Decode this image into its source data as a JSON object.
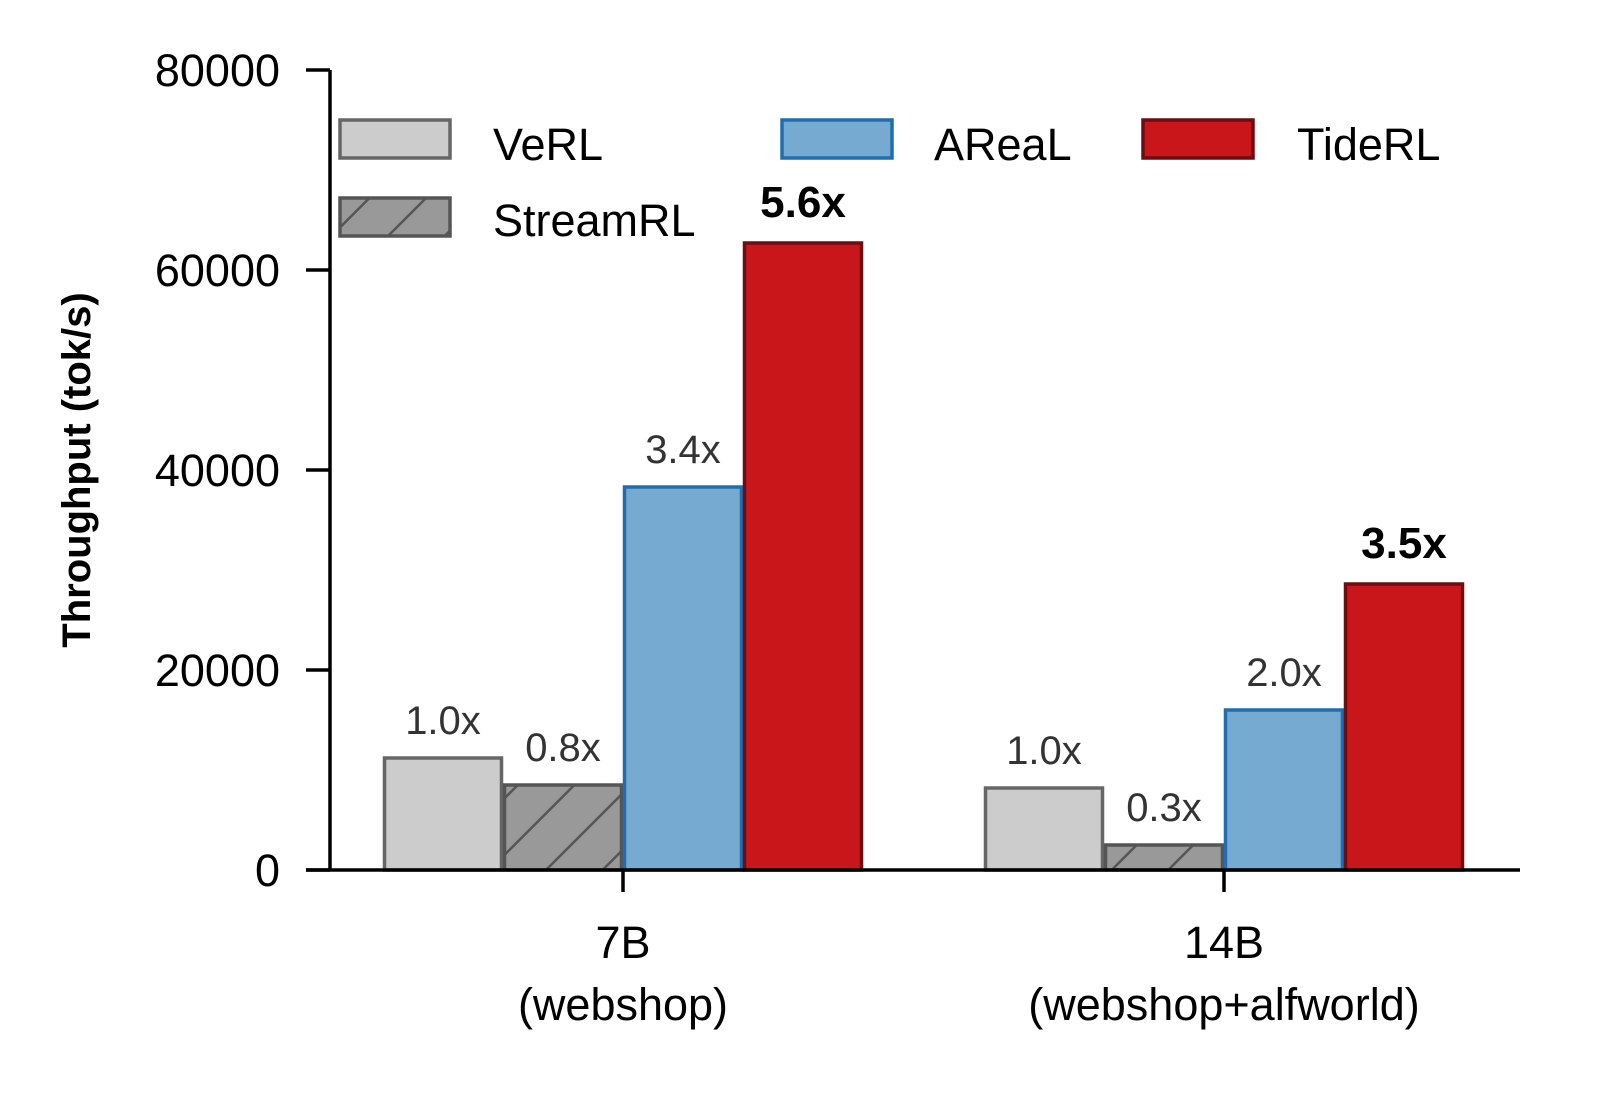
{
  "chart_data": {
    "type": "bar",
    "title": "",
    "xlabel": "",
    "ylabel": "Throughput (tok/s)",
    "ylim": [
      0,
      80000
    ],
    "yticks": [
      0,
      20000,
      40000,
      60000,
      80000
    ],
    "ytick_labels": [
      "0",
      "20000",
      "40000",
      "60000",
      "80000"
    ],
    "categories": [
      [
        "7B",
        "(webshop)"
      ],
      [
        "14B",
        "(webshop+alfworld)"
      ]
    ],
    "legend_placement": "top",
    "grid": false,
    "series": [
      {
        "name": "VeRL",
        "values": [
          11200,
          8200
        ],
        "labels": [
          "1.0x",
          "1.0x"
        ],
        "fill": "#cccccc",
        "stroke": "#666666",
        "hatch": false,
        "bold_labels": false
      },
      {
        "name": "StreamRL",
        "values": [
          8500,
          2500
        ],
        "labels": [
          "0.8x",
          "0.3x"
        ],
        "fill": "#999999",
        "stroke": "#555555",
        "hatch": true,
        "bold_labels": false
      },
      {
        "name": "AReaL",
        "values": [
          38300,
          16000
        ],
        "labels": [
          "3.4x",
          "2.0x"
        ],
        "fill": "#76aad0",
        "stroke": "#1f6fb0",
        "hatch": false,
        "bold_labels": false
      },
      {
        "name": "TideRL",
        "values": [
          62700,
          28600
        ],
        "labels": [
          "5.6x",
          "3.5x"
        ],
        "fill": "#c9161b",
        "stroke": "#6e0c10",
        "hatch": false,
        "bold_labels": true
      }
    ]
  }
}
